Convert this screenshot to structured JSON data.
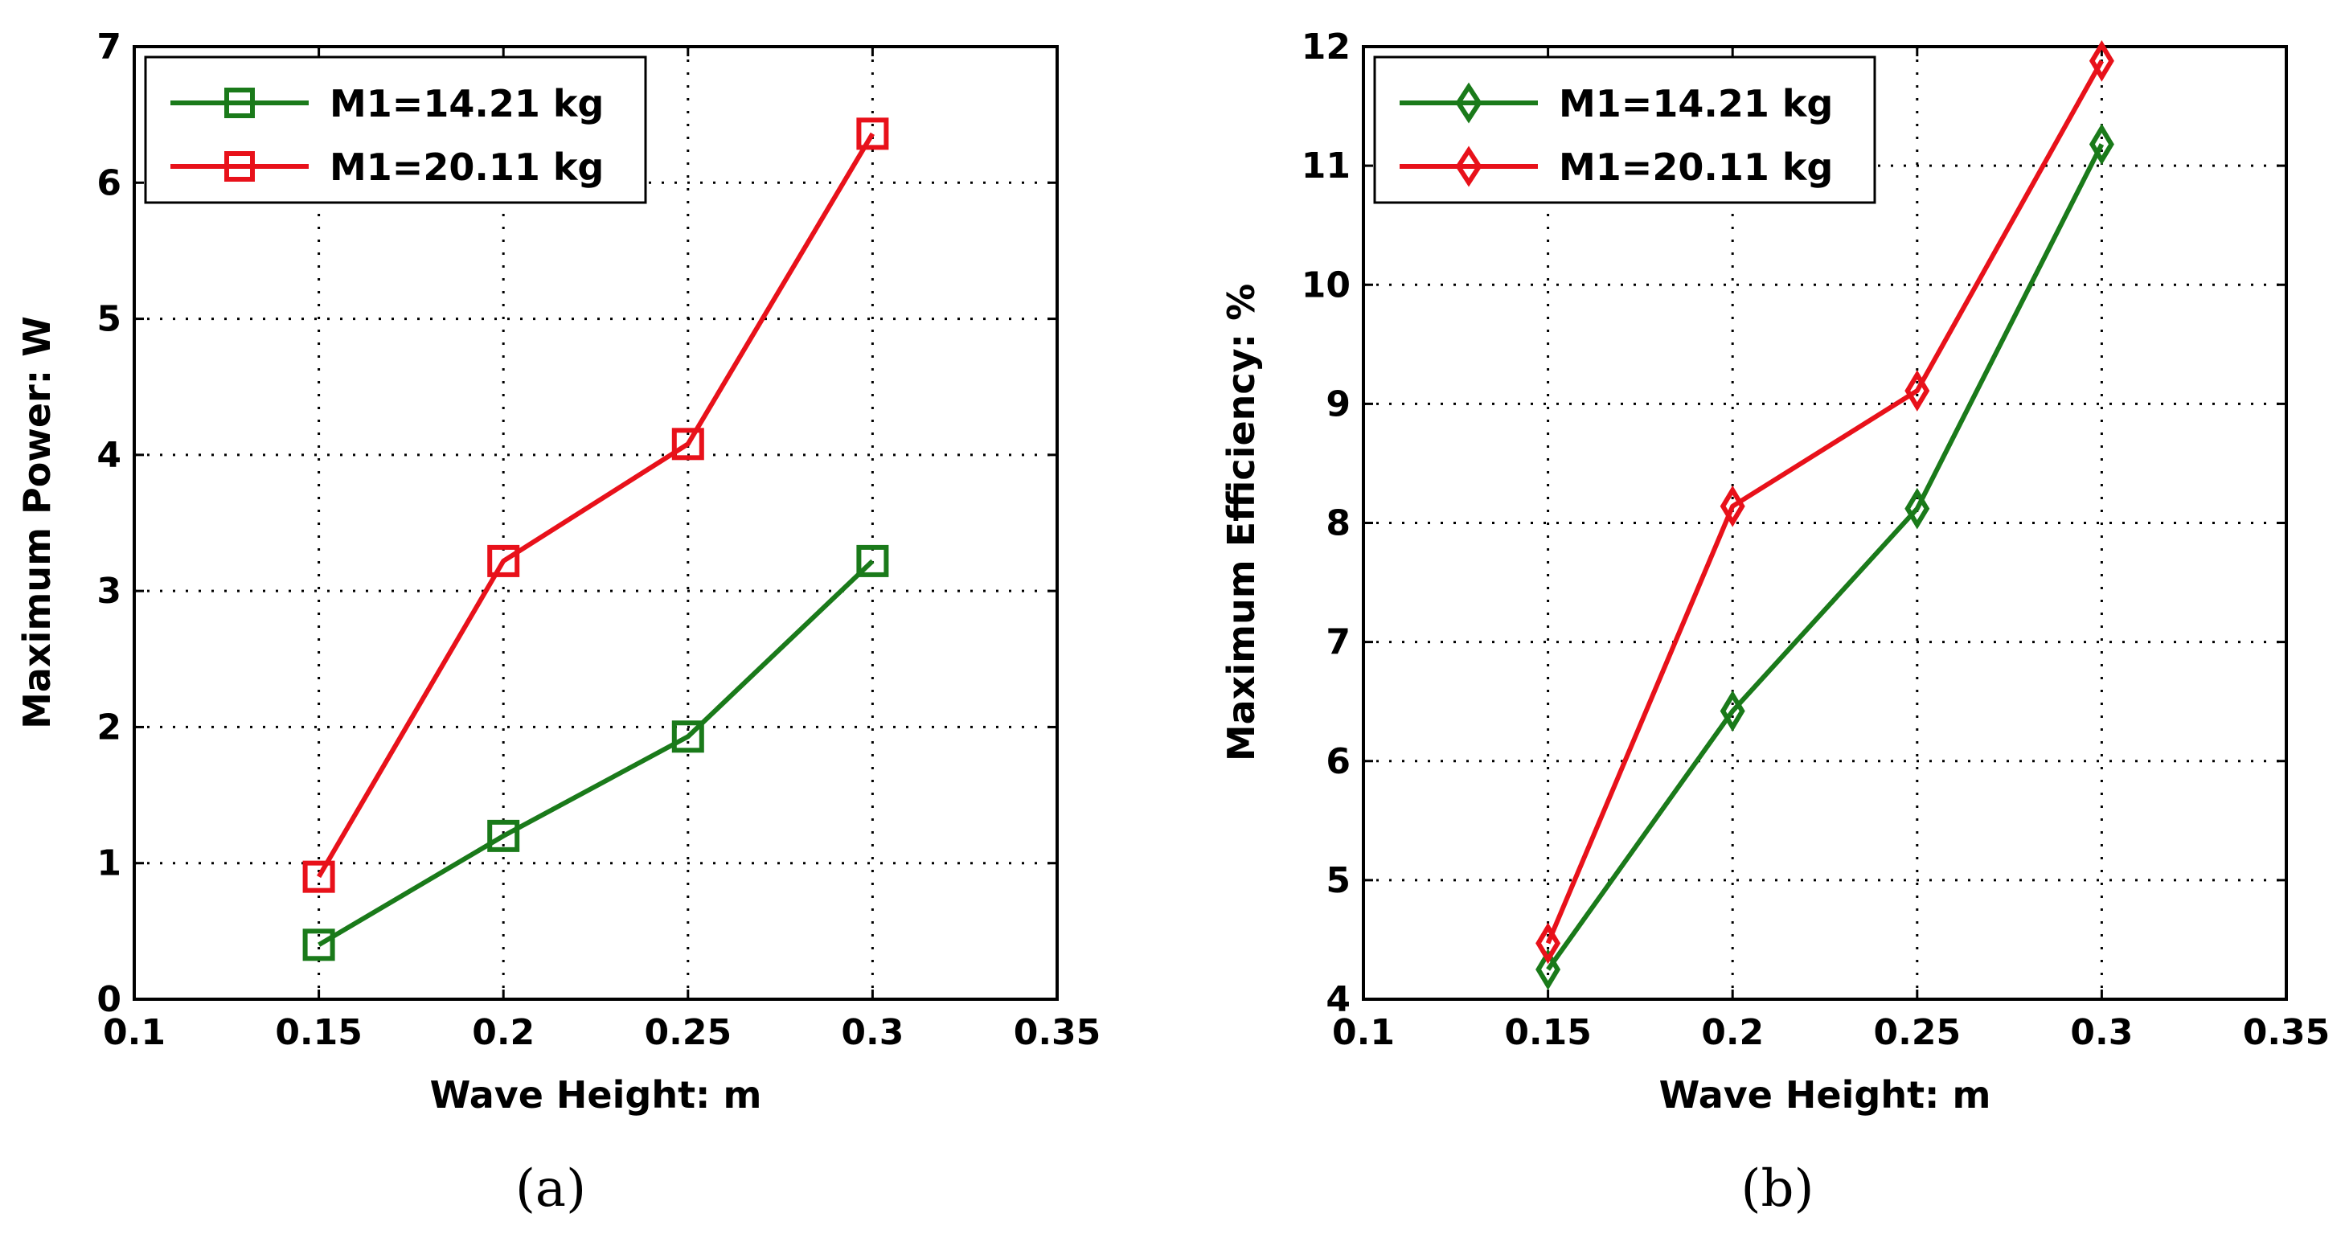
{
  "chart_data": [
    {
      "type": "line",
      "caption": "(a)",
      "xlabel": "Wave Height: m",
      "ylabel": "Maximum Power: W",
      "xlim": [
        0.1,
        0.35
      ],
      "ylim": [
        0,
        7
      ],
      "xticks": [
        "0.1",
        "0.15",
        "0.2",
        "0.25",
        "0.3",
        "0.35"
      ],
      "yticks": [
        "0",
        "1",
        "2",
        "3",
        "4",
        "5",
        "6",
        "7"
      ],
      "grid": true,
      "legend_position": "top-left",
      "marker": "square",
      "x": [
        0.15,
        0.2,
        0.25,
        0.3
      ],
      "series": [
        {
          "name": "M1=14.21 kg",
          "color": "#1a7a1a",
          "values": [
            0.4,
            1.2,
            1.93,
            3.22
          ]
        },
        {
          "name": "M1=20.11 kg",
          "color": "#e8111a",
          "values": [
            0.9,
            3.22,
            4.08,
            6.36
          ]
        }
      ]
    },
    {
      "type": "line",
      "caption": "(b)",
      "xlabel": "Wave Height: m",
      "ylabel": "Maximum Efficiency: %",
      "xlim": [
        0.1,
        0.35
      ],
      "ylim": [
        4,
        12
      ],
      "xticks": [
        "0.1",
        "0.15",
        "0.2",
        "0.25",
        "0.3",
        "0.35"
      ],
      "yticks": [
        "4",
        "5",
        "6",
        "7",
        "8",
        "9",
        "10",
        "11",
        "12"
      ],
      "grid": true,
      "legend_position": "top-left",
      "marker": "diamond",
      "x": [
        0.15,
        0.2,
        0.25,
        0.3
      ],
      "series": [
        {
          "name": "M1=14.21 kg",
          "color": "#1a7a1a",
          "values": [
            4.25,
            6.42,
            8.12,
            11.18
          ]
        },
        {
          "name": "M1=20.11 kg",
          "color": "#e8111a",
          "values": [
            4.47,
            8.14,
            9.11,
            11.88
          ]
        }
      ]
    }
  ]
}
